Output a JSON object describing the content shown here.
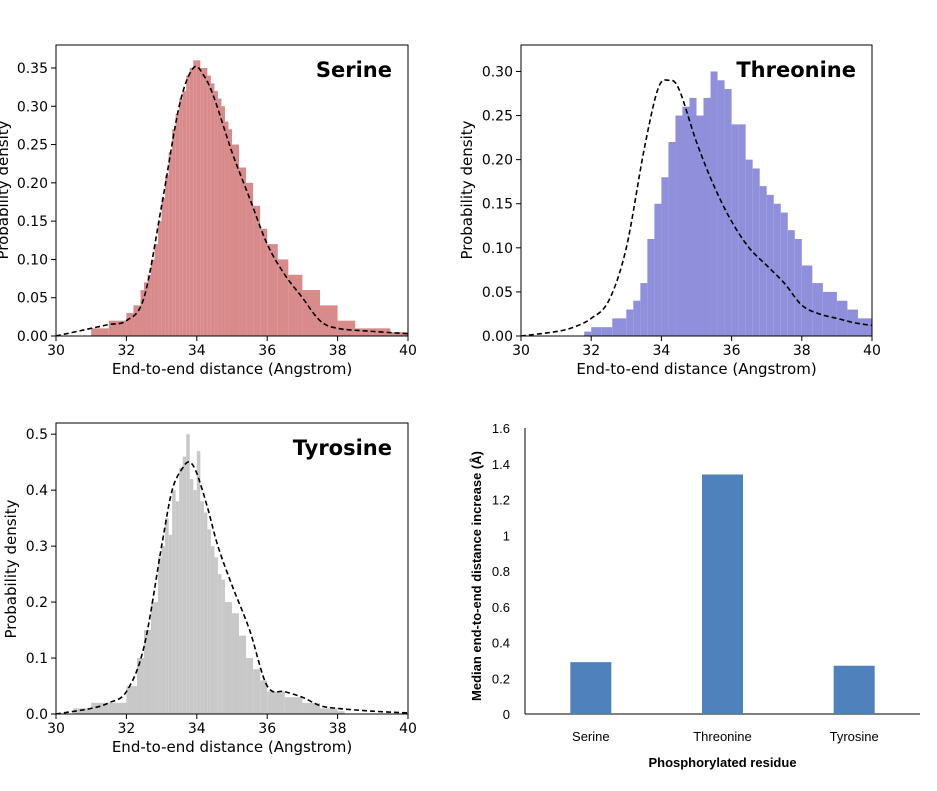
{
  "chart_data": [
    {
      "type": "histogram",
      "title": "Serine",
      "xlabel": "End-to-end distance (Angstrom)",
      "ylabel": "Probability density",
      "xlim": [
        30,
        40
      ],
      "ylim": [
        0,
        0.38
      ],
      "xticks": [
        "30",
        "32",
        "34",
        "36",
        "38",
        "40"
      ],
      "yticks": [
        "0.00",
        "0.05",
        "0.10",
        "0.15",
        "0.20",
        "0.25",
        "0.30",
        "0.35"
      ],
      "xtick_values": [
        30,
        32,
        34,
        36,
        38,
        40
      ],
      "ytick_values": [
        0,
        0.05,
        0.1,
        0.15,
        0.2,
        0.25,
        0.3,
        0.35
      ],
      "bar_color": "#d98a8a",
      "curve_color": "#000000",
      "histogram": {
        "x": [
          31.0,
          31.5,
          32.0,
          32.2,
          32.4,
          32.5,
          32.6,
          32.7,
          32.8,
          32.9,
          33.0,
          33.1,
          33.2,
          33.3,
          33.4,
          33.5,
          33.6,
          33.7,
          33.8,
          33.9,
          34.0,
          34.1,
          34.2,
          34.3,
          34.4,
          34.5,
          34.6,
          34.7,
          34.8,
          34.9,
          35.0,
          35.2,
          35.4,
          35.6,
          35.8,
          36.0,
          36.3,
          36.6,
          37.0,
          37.5,
          38.0,
          38.5,
          39.0,
          39.5,
          40.0
        ],
        "density": [
          0.01,
          0.02,
          0.03,
          0.04,
          0.06,
          0.07,
          0.08,
          0.1,
          0.12,
          0.15,
          0.18,
          0.21,
          0.24,
          0.27,
          0.29,
          0.31,
          0.32,
          0.34,
          0.35,
          0.36,
          0.36,
          0.35,
          0.35,
          0.34,
          0.33,
          0.32,
          0.31,
          0.3,
          0.28,
          0.27,
          0.25,
          0.22,
          0.2,
          0.17,
          0.14,
          0.12,
          0.1,
          0.08,
          0.06,
          0.04,
          0.02,
          0.01,
          0.01,
          0.005,
          0.002
        ]
      },
      "density_curve": {
        "x": [
          30,
          31,
          31.5,
          32,
          32.5,
          33,
          33.5,
          33.9,
          34.2,
          34.5,
          35,
          35.5,
          36,
          36.5,
          37,
          37.5,
          38,
          39,
          40
        ],
        "y": [
          0,
          0.01,
          0.015,
          0.02,
          0.05,
          0.17,
          0.3,
          0.35,
          0.34,
          0.31,
          0.24,
          0.18,
          0.12,
          0.08,
          0.05,
          0.02,
          0.01,
          0.006,
          0.003
        ]
      }
    },
    {
      "type": "histogram",
      "title": "Threonine",
      "xlabel": "End-to-end distance (Angstrom)",
      "ylabel": "Probability density",
      "xlim": [
        30,
        40
      ],
      "ylim": [
        0,
        0.33
      ],
      "xticks": [
        "30",
        "32",
        "34",
        "36",
        "38",
        "40"
      ],
      "yticks": [
        "0.00",
        "0.05",
        "0.10",
        "0.15",
        "0.20",
        "0.25",
        "0.30"
      ],
      "xtick_values": [
        30,
        32,
        34,
        36,
        38,
        40
      ],
      "ytick_values": [
        0,
        0.05,
        0.1,
        0.15,
        0.2,
        0.25,
        0.3
      ],
      "bar_color": "#8f8fdb",
      "curve_color": "#000000",
      "histogram": {
        "x": [
          31.8,
          32.0,
          32.3,
          32.6,
          33.0,
          33.2,
          33.4,
          33.6,
          33.8,
          34.0,
          34.2,
          34.4,
          34.6,
          34.8,
          35.0,
          35.2,
          35.4,
          35.6,
          35.8,
          36.0,
          36.2,
          36.4,
          36.6,
          36.8,
          37.0,
          37.2,
          37.4,
          37.6,
          37.8,
          38.0,
          38.3,
          38.6,
          39.0,
          39.3,
          39.6,
          40.0
        ],
        "density": [
          0.005,
          0.01,
          0.01,
          0.02,
          0.03,
          0.04,
          0.06,
          0.11,
          0.15,
          0.18,
          0.22,
          0.25,
          0.26,
          0.27,
          0.25,
          0.27,
          0.3,
          0.29,
          0.28,
          0.24,
          0.24,
          0.2,
          0.19,
          0.17,
          0.16,
          0.15,
          0.14,
          0.12,
          0.11,
          0.08,
          0.06,
          0.05,
          0.04,
          0.03,
          0.02,
          0.01
        ]
      },
      "density_curve": {
        "x": [
          30,
          31,
          31.5,
          32,
          32.5,
          33,
          33.5,
          33.9,
          34.2,
          34.5,
          35,
          35.5,
          36,
          36.5,
          37,
          37.5,
          38,
          38.5,
          39,
          39.5,
          40
        ],
        "y": [
          0,
          0.005,
          0.01,
          0.02,
          0.04,
          0.1,
          0.21,
          0.28,
          0.29,
          0.28,
          0.22,
          0.17,
          0.13,
          0.1,
          0.08,
          0.06,
          0.035,
          0.025,
          0.02,
          0.015,
          0.012
        ]
      }
    },
    {
      "type": "histogram",
      "title": "Tyrosine",
      "xlabel": "End-to-end distance (Angstrom)",
      "ylabel": "Probability density",
      "xlim": [
        30,
        40
      ],
      "ylim": [
        0,
        0.52
      ],
      "xticks": [
        "30",
        "32",
        "34",
        "36",
        "38",
        "40"
      ],
      "yticks": [
        "0.0",
        "0.1",
        "0.2",
        "0.3",
        "0.4",
        "0.5"
      ],
      "xtick_values": [
        30,
        32,
        34,
        36,
        38,
        40
      ],
      "ytick_values": [
        0,
        0.1,
        0.2,
        0.3,
        0.4,
        0.5
      ],
      "bar_color": "#c8c8c8",
      "curve_color": "#000000",
      "histogram": {
        "x": [
          30.5,
          31.0,
          31.5,
          32.0,
          32.3,
          32.5,
          32.7,
          32.9,
          33.0,
          33.1,
          33.2,
          33.3,
          33.4,
          33.5,
          33.6,
          33.7,
          33.8,
          33.9,
          34.0,
          34.1,
          34.2,
          34.3,
          34.4,
          34.5,
          34.6,
          34.7,
          34.8,
          35.0,
          35.2,
          35.4,
          35.6,
          35.8,
          36.0,
          36.5,
          37.0,
          37.5,
          38.0
        ],
        "density": [
          0.01,
          0.02,
          0.02,
          0.05,
          0.1,
          0.15,
          0.2,
          0.28,
          0.3,
          0.35,
          0.32,
          0.4,
          0.38,
          0.44,
          0.46,
          0.5,
          0.42,
          0.4,
          0.47,
          0.38,
          0.36,
          0.33,
          0.3,
          0.28,
          0.25,
          0.24,
          0.2,
          0.18,
          0.14,
          0.1,
          0.08,
          0.06,
          0.04,
          0.03,
          0.02,
          0.01,
          0.005
        ]
      },
      "density_curve": {
        "x": [
          30,
          31,
          31.5,
          32,
          32.5,
          33,
          33.3,
          33.6,
          33.8,
          34.0,
          34.3,
          34.6,
          35,
          35.5,
          36,
          36.5,
          37,
          37.5,
          38,
          39,
          40
        ],
        "y": [
          0,
          0.01,
          0.02,
          0.04,
          0.12,
          0.3,
          0.4,
          0.44,
          0.45,
          0.43,
          0.37,
          0.3,
          0.23,
          0.15,
          0.05,
          0.04,
          0.03,
          0.015,
          0.01,
          0.005,
          0.002
        ]
      }
    },
    {
      "type": "bar",
      "xlabel": "Phosphorylated residue",
      "ylabel": "Median end-to-end distance increase (Å)",
      "categories": [
        "Serine",
        "Threonine",
        "Tyrosine"
      ],
      "values": [
        0.29,
        1.34,
        0.27
      ],
      "ylim": [
        0,
        1.6
      ],
      "yticks": [
        "0",
        "0.2",
        "0.4",
        "0.6",
        "0.8",
        "1",
        "1.2",
        "1.4",
        "1.6"
      ],
      "ytick_values": [
        0,
        0.2,
        0.4,
        0.6,
        0.8,
        1.0,
        1.2,
        1.4,
        1.6
      ],
      "bar_color": "#4f81bd"
    }
  ]
}
